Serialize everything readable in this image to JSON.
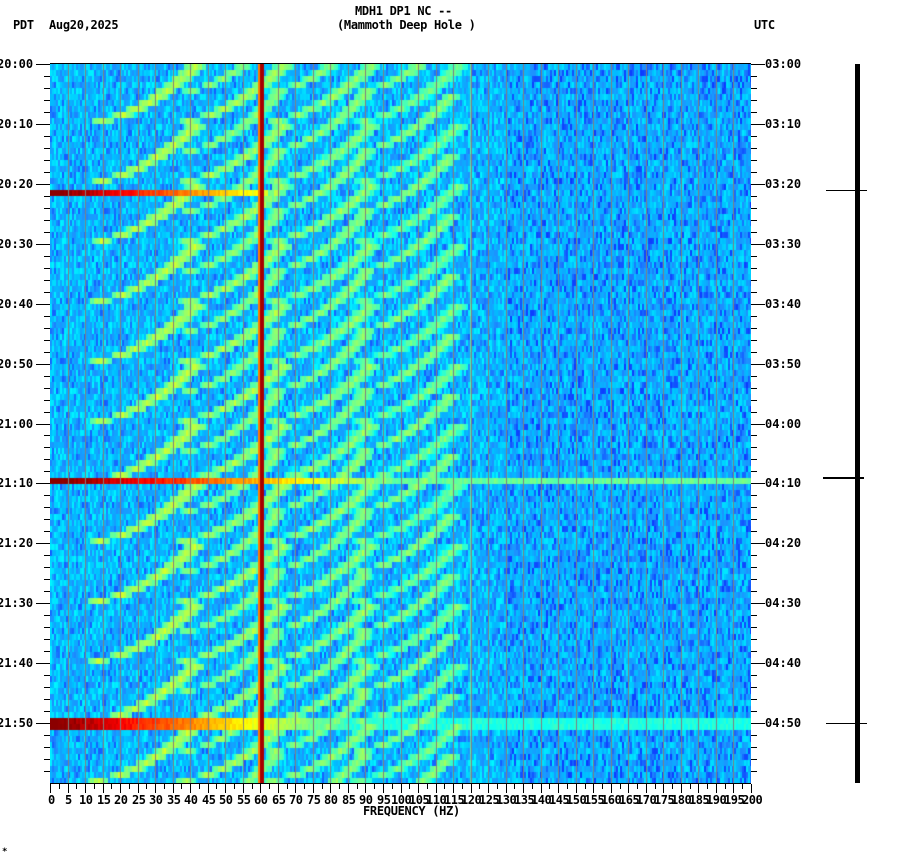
{
  "header": {
    "station": "MDH1 DP1 NC --",
    "location": "(Mammoth Deep Hole )",
    "left_timezone": "PDT",
    "date": "Aug20,2025",
    "right_timezone": "UTC"
  },
  "footer_mark": "*",
  "chart_data": {
    "type": "heatmap",
    "title": "MDH1 DP1 NC -- (Mammoth Deep Hole )",
    "subtitle": "Aug20,2025",
    "xlabel": "FREQUENCY (HZ)",
    "ylabel_left": "PDT",
    "ylabel_right": "UTC",
    "xlim": [
      0,
      200
    ],
    "x_ticks": [
      0,
      5,
      10,
      15,
      20,
      25,
      30,
      35,
      40,
      45,
      50,
      55,
      60,
      65,
      70,
      75,
      80,
      85,
      90,
      95,
      100,
      105,
      110,
      115,
      120,
      125,
      130,
      135,
      140,
      145,
      150,
      155,
      160,
      165,
      170,
      175,
      180,
      185,
      190,
      195,
      200
    ],
    "y_ticks_left": [
      "20:00",
      "20:10",
      "20:20",
      "20:30",
      "20:40",
      "20:50",
      "21:00",
      "21:10",
      "21:20",
      "21:30",
      "21:40",
      "21:50"
    ],
    "y_ticks_right": [
      "03:00",
      "03:10",
      "03:20",
      "03:30",
      "03:40",
      "03:50",
      "04:00",
      "04:10",
      "04:20",
      "04:30",
      "04:40",
      "04:50"
    ],
    "time_range_pdt": [
      "20:00",
      "22:00"
    ],
    "grid": {
      "vertical_every_hz": 5,
      "color": "#808080"
    },
    "colormap": [
      "#0000ff",
      "#1e90ff",
      "#00bfff",
      "#00ffff",
      "#7fff7f",
      "#ffff00",
      "#ff7f00",
      "#ff0000",
      "#8b0000"
    ],
    "background_level": "blue (low power)",
    "features": [
      {
        "kind": "constant_line",
        "frequency_hz": 60,
        "color": "#8b0000",
        "note": "60 Hz power-line noise, full duration"
      },
      {
        "kind": "broadband_burst",
        "time_pdt": "20:21",
        "extent_hz": [
          0,
          60
        ],
        "strength": "strong at low frequency, fading toward 60 Hz"
      },
      {
        "kind": "broadband_burst",
        "time_pdt": "21:09",
        "extent_hz": [
          0,
          200
        ],
        "strength": "strong, extends across full band"
      },
      {
        "kind": "broadband_burst",
        "time_pdt": "21:50",
        "extent_hz": [
          0,
          200
        ],
        "strength": "strong at low frequency, weaker above 60 Hz"
      },
      {
        "kind": "curved_harmonic_sweeps",
        "period_minutes": 10,
        "frequency_range_hz": [
          20,
          130
        ],
        "note": "repeating upward-curving arcs (green/yellow), several harmonics per cycle"
      }
    ]
  },
  "right_trace": {
    "markers_pdt": [
      "20:21",
      "21:09",
      "21:50"
    ]
  }
}
